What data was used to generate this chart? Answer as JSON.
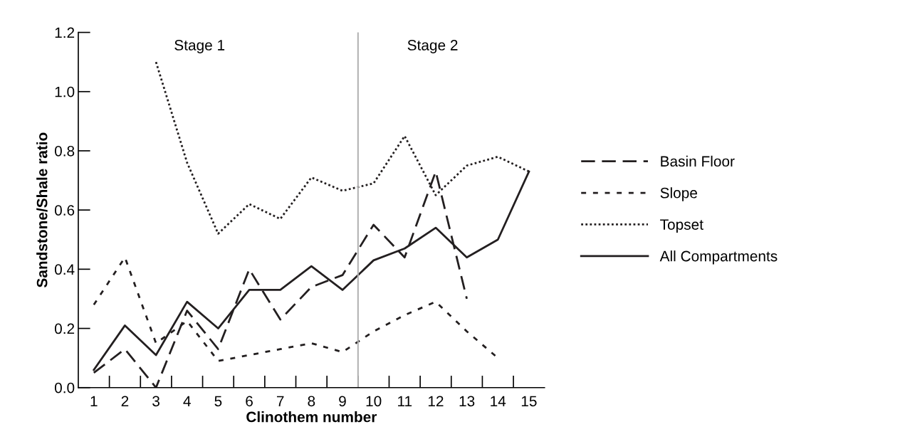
{
  "chart_data": {
    "type": "line",
    "xlabel": "Clinothem number",
    "ylabel": "Sandstone/Shale ratio",
    "x": [
      1,
      2,
      3,
      4,
      5,
      6,
      7,
      8,
      9,
      10,
      11,
      12,
      13,
      14,
      15
    ],
    "xlim": [
      0.5,
      15.5
    ],
    "xticks": [
      1,
      2,
      3,
      4,
      5,
      6,
      7,
      8,
      9,
      10,
      11,
      12,
      13,
      14,
      15
    ],
    "ylim": [
      0,
      1.2
    ],
    "yticks": [
      {
        "value": 0,
        "label": "0.0"
      },
      0.2,
      0.4,
      0.6,
      0.8,
      {
        "value": 1,
        "label": "1.0"
      },
      1.2
    ],
    "series": [
      {
        "name": "Basin Floor",
        "color": "#231f20",
        "line_style": "dashed",
        "values": [
          0.05,
          0.13,
          0.0,
          0.26,
          0.13,
          0.4,
          0.23,
          0.34,
          0.38,
          0.55,
          0.44,
          0.73,
          0.3,
          null,
          null
        ]
      },
      {
        "name": "Slope",
        "color": "#231f20",
        "line_style": "dotted",
        "values": [
          0.28,
          0.44,
          0.15,
          0.225,
          0.09,
          0.11,
          0.13,
          0.15,
          0.12,
          0.19,
          0.245,
          0.29,
          0.19,
          0.1,
          null
        ]
      },
      {
        "name": "Topset",
        "color": "#231f20",
        "line_style": "densely dotted",
        "values": [
          null,
          null,
          1.1,
          0.76,
          0.52,
          0.62,
          0.57,
          0.71,
          0.665,
          0.69,
          0.85,
          0.65,
          0.75,
          0.78,
          0.73
        ]
      },
      {
        "name": "All Compartments",
        "color": "#231f20",
        "line_style": "solid",
        "values": [
          0.06,
          0.21,
          0.11,
          0.29,
          0.2,
          0.33,
          0.33,
          0.41,
          0.33,
          0.43,
          0.47,
          0.54,
          0.44,
          0.5,
          0.73
        ]
      }
    ],
    "ref_lines": [
      {
        "axis": "x",
        "value": 9.5,
        "color": "#b3b3b3",
        "line_style": "solid"
      }
    ],
    "annotations": [
      "Stage 1",
      "Stage 2"
    ],
    "legend": "right",
    "grid": false,
    "marker": "none"
  }
}
